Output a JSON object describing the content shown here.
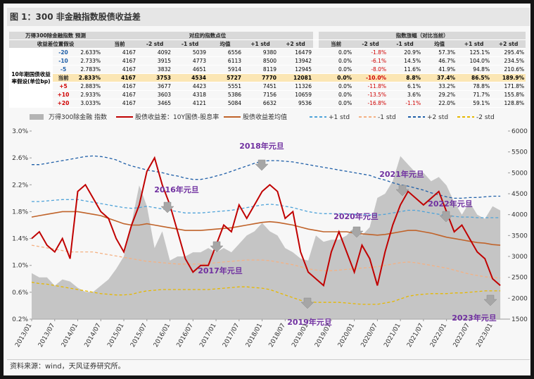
{
  "header": {
    "title": "图 1：300 非金融指数股债收益差"
  },
  "table": {
    "corner": [
      "万得300除金融指数 预测",
      "收益差位置假设"
    ],
    "row_header": "10年期国债收益率假设(单位bp)",
    "groups": [
      {
        "title": "对应的指数点位",
        "columns": [
          "当前",
          "-2 std",
          "-1 std",
          "均值",
          "+1 std",
          "+2 std"
        ]
      },
      {
        "title": "指数涨幅（对比当前）",
        "columns": [
          "当前",
          "-2 std",
          "-1 std",
          "均值",
          "+1 std",
          "+2 std"
        ]
      }
    ],
    "rows": [
      [
        "-20",
        "2.633%",
        "4167",
        "4092",
        "5039",
        "6556",
        "9380",
        "16479",
        "0.0%",
        "-1.8%",
        "20.9%",
        "57.3%",
        "125.1%",
        "295.4%"
      ],
      [
        "-10",
        "2.733%",
        "4167",
        "3915",
        "4773",
        "6113",
        "8500",
        "13942",
        "0.0%",
        "-6.1%",
        "14.5%",
        "46.7%",
        "104.0%",
        "234.5%"
      ],
      [
        "-5",
        "2.783%",
        "4167",
        "3832",
        "4651",
        "5914",
        "8119",
        "12945",
        "0.0%",
        "-8.0%",
        "11.6%",
        "41.9%",
        "94.8%",
        "210.6%"
      ],
      [
        "当前",
        "2.833%",
        "4167",
        "3753",
        "4534",
        "5727",
        "7770",
        "12081",
        "0.0%",
        "-10.0%",
        "8.8%",
        "37.4%",
        "86.5%",
        "189.9%"
      ],
      [
        "+5",
        "2.883%",
        "4167",
        "3677",
        "4423",
        "5551",
        "7451",
        "11326",
        "0.0%",
        "-11.8%",
        "6.1%",
        "33.2%",
        "78.8%",
        "171.8%"
      ],
      [
        "+10",
        "2.933%",
        "4167",
        "3603",
        "4318",
        "5386",
        "7156",
        "10659",
        "0.0%",
        "-13.5%",
        "3.6%",
        "29.2%",
        "71.7%",
        "155.8%"
      ],
      [
        "+20",
        "3.033%",
        "4167",
        "3465",
        "4121",
        "5084",
        "6632",
        "9536",
        "0.0%",
        "-16.8%",
        "-1.1%",
        "22.0%",
        "59.1%",
        "128.8%"
      ]
    ]
  },
  "chart_data": {
    "type": "line",
    "x": [
      "2013/01",
      "2013/03",
      "2013/05",
      "2013/07",
      "2013/09",
      "2013/11",
      "2014/01",
      "2014/03",
      "2014/05",
      "2014/07",
      "2014/09",
      "2014/11",
      "2015/01",
      "2015/03",
      "2015/05",
      "2015/07",
      "2015/09",
      "2015/11",
      "2016/01",
      "2016/03",
      "2016/05",
      "2016/07",
      "2016/09",
      "2016/11",
      "2017/01",
      "2017/03",
      "2017/05",
      "2017/07",
      "2017/09",
      "2017/11",
      "2018/01",
      "2018/03",
      "2018/05",
      "2018/07",
      "2018/09",
      "2018/11",
      "2019/01",
      "2019/03",
      "2019/05",
      "2019/07",
      "2019/09",
      "2019/11",
      "2020/01",
      "2020/03",
      "2020/05",
      "2020/07",
      "2020/09",
      "2020/11",
      "2021/01",
      "2021/03",
      "2021/05",
      "2021/07",
      "2021/09",
      "2021/11",
      "2022/01",
      "2022/03",
      "2022/05",
      "2022/07",
      "2022/09",
      "2022/11",
      "2023/01",
      "2023/03"
    ],
    "xlim": [
      "2013/01",
      "2023/05"
    ],
    "xticks": [
      "2013/01",
      "2013/07",
      "2014/01",
      "2014/07",
      "2015/01",
      "2015/07",
      "2016/01",
      "2016/07",
      "2017/01",
      "2017/07",
      "2018/01",
      "2018/07",
      "2019/01",
      "2019/07",
      "2020/01",
      "2020/07",
      "2021/01",
      "2021/07",
      "2022/01",
      "2022/07",
      "2023/01"
    ],
    "ylim": [
      0.2,
      3.0
    ],
    "yticks": [
      {
        "value": 0.2,
        "label": "0.2%"
      },
      {
        "value": 0.6,
        "label": "0.6%"
      },
      {
        "value": 1.0,
        "label": "1.0%"
      },
      {
        "value": 1.4,
        "label": "1.4%"
      },
      {
        "value": 1.8,
        "label": "1.8%"
      },
      {
        "value": 2.2,
        "label": "2.2%"
      },
      {
        "value": 2.6,
        "label": "2.6%"
      },
      {
        "value": 3.0,
        "label": "3.0%"
      }
    ],
    "y2lim": [
      1500,
      6000
    ],
    "y2ticks": [
      1500,
      2000,
      2500,
      3000,
      3500,
      4000,
      4500,
      5000,
      5500,
      6000
    ],
    "series": [
      {
        "name": "万得300除金融 指数",
        "color": "#b4b4b4",
        "axis": "y2",
        "style": "area",
        "values": [
          2600,
          2500,
          2500,
          2300,
          2450,
          2400,
          2250,
          2150,
          2150,
          2300,
          2450,
          2700,
          3000,
          3800,
          4700,
          4200,
          3200,
          3600,
          2900,
          3000,
          3000,
          3100,
          3100,
          3200,
          3100,
          3200,
          3100,
          3300,
          3500,
          3600,
          3800,
          3600,
          3500,
          3200,
          3100,
          2950,
          2900,
          3500,
          3350,
          3400,
          3400,
          3500,
          3700,
          3500,
          3700,
          4400,
          4500,
          4800,
          5400,
          5200,
          5000,
          5000,
          4800,
          4900,
          4700,
          4300,
          4000,
          4300,
          4000,
          3900,
          4200,
          4100
        ]
      },
      {
        "name": "股债收益差：10Y国债-股息率",
        "color": "#c00000",
        "style": "solid",
        "values": [
          1.4,
          1.5,
          1.3,
          1.2,
          1.4,
          1.1,
          2.1,
          2.2,
          2.0,
          1.8,
          1.7,
          1.4,
          1.2,
          1.6,
          1.9,
          2.4,
          2.6,
          2.2,
          1.9,
          1.5,
          1.1,
          0.9,
          1.0,
          1.0,
          1.3,
          1.6,
          1.5,
          1.9,
          1.7,
          1.9,
          2.1,
          2.2,
          2.1,
          1.7,
          1.8,
          1.2,
          0.9,
          0.8,
          0.7,
          1.2,
          1.5,
          1.2,
          0.9,
          1.3,
          1.1,
          0.7,
          1.2,
          1.6,
          1.9,
          2.1,
          2.0,
          1.9,
          2.0,
          2.1,
          1.8,
          1.5,
          1.6,
          1.4,
          1.2,
          1.1,
          0.8,
          0.7
        ]
      },
      {
        "name": "股债收益差均值",
        "color": "#c0632a",
        "style": "solid",
        "values": [
          1.72,
          1.74,
          1.76,
          1.78,
          1.8,
          1.8,
          1.8,
          1.78,
          1.76,
          1.74,
          1.7,
          1.66,
          1.62,
          1.6,
          1.6,
          1.62,
          1.6,
          1.58,
          1.56,
          1.54,
          1.52,
          1.52,
          1.52,
          1.53,
          1.54,
          1.55,
          1.56,
          1.58,
          1.6,
          1.62,
          1.64,
          1.65,
          1.64,
          1.62,
          1.6,
          1.57,
          1.54,
          1.52,
          1.5,
          1.5,
          1.5,
          1.5,
          1.48,
          1.47,
          1.46,
          1.45,
          1.46,
          1.48,
          1.5,
          1.52,
          1.52,
          1.5,
          1.48,
          1.45,
          1.42,
          1.4,
          1.38,
          1.36,
          1.34,
          1.33,
          1.31,
          1.3
        ]
      },
      {
        "name": "+1 std",
        "color": "#4fa3d9",
        "style": "dashed",
        "values": [
          1.95,
          1.95,
          1.96,
          1.97,
          1.98,
          1.98,
          1.98,
          1.96,
          1.94,
          1.92,
          1.9,
          1.88,
          1.86,
          1.85,
          1.86,
          1.88,
          1.86,
          1.84,
          1.82,
          1.8,
          1.78,
          1.78,
          1.78,
          1.79,
          1.8,
          1.81,
          1.82,
          1.84,
          1.86,
          1.88,
          1.9,
          1.91,
          1.9,
          1.88,
          1.86,
          1.83,
          1.8,
          1.78,
          1.77,
          1.77,
          1.77,
          1.77,
          1.76,
          1.76,
          1.75,
          1.75,
          1.76,
          1.78,
          1.8,
          1.82,
          1.82,
          1.8,
          1.78,
          1.76,
          1.74,
          1.73,
          1.72,
          1.72,
          1.71,
          1.71,
          1.71,
          1.71
        ]
      },
      {
        "name": "-1 std",
        "color": "#f4b183",
        "style": "dashed",
        "values": [
          1.3,
          1.28,
          1.26,
          1.24,
          1.22,
          1.2,
          1.2,
          1.2,
          1.2,
          1.18,
          1.16,
          1.14,
          1.12,
          1.1,
          1.08,
          1.06,
          1.05,
          1.04,
          1.03,
          1.02,
          1.02,
          1.02,
          1.02,
          1.03,
          1.04,
          1.05,
          1.06,
          1.07,
          1.08,
          1.08,
          1.08,
          1.07,
          1.05,
          1.03,
          1.01,
          0.98,
          0.95,
          0.93,
          0.92,
          0.92,
          0.93,
          0.94,
          0.95,
          0.96,
          0.97,
          0.98,
          1.0,
          1.02,
          1.04,
          1.05,
          1.04,
          1.02,
          1.0,
          0.98,
          0.96,
          0.93,
          0.9,
          0.87,
          0.85,
          0.83,
          0.82,
          0.81
        ]
      },
      {
        "name": "+2 std",
        "color": "#1f5fa8",
        "style": "dashed",
        "values": [
          2.5,
          2.5,
          2.52,
          2.54,
          2.56,
          2.58,
          2.6,
          2.62,
          2.63,
          2.62,
          2.6,
          2.57,
          2.52,
          2.48,
          2.45,
          2.42,
          2.4,
          2.38,
          2.35,
          2.33,
          2.3,
          2.28,
          2.28,
          2.3,
          2.33,
          2.36,
          2.4,
          2.44,
          2.48,
          2.52,
          2.55,
          2.56,
          2.56,
          2.55,
          2.54,
          2.52,
          2.5,
          2.48,
          2.46,
          2.44,
          2.42,
          2.4,
          2.38,
          2.36,
          2.34,
          2.3,
          2.27,
          2.23,
          2.2,
          2.18,
          2.15,
          2.12,
          2.08,
          2.05,
          2.02,
          2.0,
          2.0,
          2.01,
          2.01,
          2.02,
          2.03,
          2.03
        ]
      },
      {
        "name": "-2 std",
        "color": "#e6b800",
        "style": "dashed",
        "values": [
          0.75,
          0.73,
          0.72,
          0.7,
          0.68,
          0.66,
          0.64,
          0.62,
          0.6,
          0.58,
          0.57,
          0.56,
          0.56,
          0.57,
          0.6,
          0.62,
          0.63,
          0.64,
          0.64,
          0.64,
          0.64,
          0.64,
          0.64,
          0.64,
          0.65,
          0.66,
          0.67,
          0.68,
          0.68,
          0.67,
          0.66,
          0.64,
          0.6,
          0.56,
          0.52,
          0.48,
          0.46,
          0.45,
          0.45,
          0.45,
          0.45,
          0.44,
          0.43,
          0.42,
          0.42,
          0.42,
          0.44,
          0.46,
          0.5,
          0.54,
          0.56,
          0.57,
          0.58,
          0.58,
          0.58,
          0.59,
          0.59,
          0.6,
          0.61,
          0.62,
          0.62,
          0.62
        ]
      }
    ],
    "annotations": [
      "2016年元旦",
      "2017年元旦",
      "2018年元旦",
      "2019年元旦",
      "2020年元旦",
      "2021年元旦",
      "2022年元旦",
      "2023年元旦"
    ]
  },
  "footer": {
    "source": "资料来源：wind，天风证券研究所。"
  }
}
